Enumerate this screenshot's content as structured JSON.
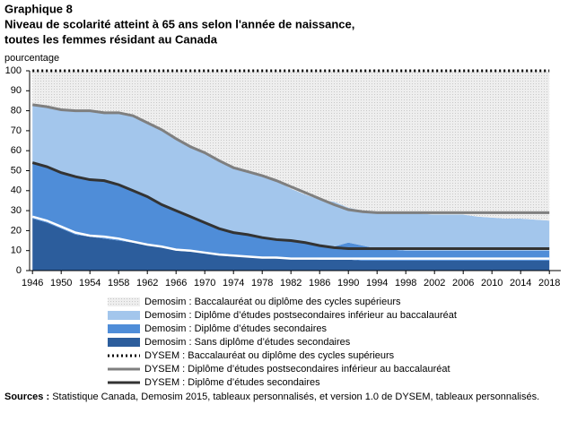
{
  "chart_data": {
    "type": "area",
    "label": "Graphique  8",
    "title": [
      "Niveau de scolarité atteint à 65 ans selon l'année de naissance,",
      "toutes les femmes résidant au Canada"
    ],
    "y_label": "pourcentage",
    "x": [
      1946,
      1948,
      1950,
      1952,
      1954,
      1956,
      1958,
      1960,
      1962,
      1964,
      1966,
      1968,
      1970,
      1972,
      1974,
      1976,
      1978,
      1980,
      1982,
      1984,
      1986,
      1988,
      1990,
      1992,
      1994,
      1996,
      1998,
      2000,
      2002,
      2004,
      2006,
      2008,
      2010,
      2012,
      2014,
      2016,
      2018
    ],
    "xlim": [
      1945.6,
      2019.6
    ],
    "xticks": [
      1946,
      1950,
      1954,
      1958,
      1962,
      1966,
      1970,
      1974,
      1978,
      1982,
      1986,
      1990,
      1994,
      1998,
      2002,
      2006,
      2010,
      2014,
      2018
    ],
    "ylim": [
      0,
      100
    ],
    "yticks": [
      0,
      10,
      20,
      30,
      40,
      50,
      60,
      70,
      80,
      90,
      100
    ],
    "series": [
      {
        "name": "Demosim : Baccalauréat ou diplôme des cycles supérieurs",
        "kind": "area",
        "color": "#e4e4e4",
        "pattern": "dots",
        "values": [
          17,
          18,
          19.5,
          20,
          20.5,
          21,
          21.5,
          23,
          26,
          29,
          34,
          38,
          41,
          45,
          48,
          50,
          52.5,
          55,
          59,
          62,
          64.5,
          65.5,
          68.5,
          70,
          71,
          71.5,
          71.5,
          71.5,
          72,
          72,
          72,
          73,
          73.5,
          74,
          74,
          74.5,
          75
        ]
      },
      {
        "name": "Demosim : Diplôme d’études postsecondaires inférieur au baccalauréat",
        "kind": "area",
        "color": "#a3c6ec",
        "values": [
          29,
          30,
          31.5,
          33,
          34,
          34,
          35.5,
          37,
          37,
          38,
          36,
          35,
          35,
          34,
          33,
          32,
          31,
          29.5,
          26.5,
          24.5,
          23.5,
          22.5,
          17.5,
          17.5,
          18,
          18,
          18.5,
          18.5,
          18,
          18,
          18,
          17,
          16.5,
          16,
          16,
          15.5,
          15
        ]
      },
      {
        "name": "Demosim : Diplôme d’études secondaires",
        "kind": "area",
        "color": "#4f8dd8",
        "values": [
          28,
          28,
          28,
          29,
          28.5,
          29,
          28,
          26,
          24,
          21,
          20,
          17.5,
          15,
          13,
          11.5,
          11,
          10,
          9.5,
          8.5,
          7.5,
          6.5,
          6.5,
          8.5,
          7.5,
          6,
          5.5,
          5,
          5,
          5,
          5,
          5,
          5,
          5,
          5,
          5,
          5,
          5
        ]
      },
      {
        "name": "Demosim : Sans diplôme d’études secondaires",
        "kind": "area",
        "color": "#2c5d9c",
        "values": [
          26,
          24,
          21,
          18,
          17,
          16,
          15,
          14,
          13,
          12,
          10,
          9.5,
          9,
          8,
          7.5,
          7,
          6.5,
          6,
          6,
          6,
          5.5,
          5.5,
          5.5,
          5,
          5,
          5,
          5,
          5,
          5,
          5,
          5,
          5,
          5,
          5,
          5,
          5,
          5
        ]
      },
      {
        "name": "DYSEM : Baccalauréat ou diplôme des cycles supérieurs",
        "kind": "line",
        "color": "#000000",
        "line_style": "dotted",
        "values": [
          17,
          18,
          19.5,
          20,
          20,
          21,
          21,
          22.5,
          26,
          29.5,
          34,
          38,
          41,
          45,
          48.5,
          50.5,
          52.5,
          55,
          58,
          61,
          64,
          67,
          69.5,
          70.5,
          71,
          71,
          71,
          71,
          71,
          71,
          71,
          71,
          71,
          71,
          71,
          71,
          71
        ]
      },
      {
        "name": "DYSEM : Diplôme d’études postsecondaires inférieur au baccalauréat",
        "kind": "line",
        "color": "#7f7f7f",
        "line_style": "solid",
        "values": [
          29,
          30,
          31.5,
          33,
          34.5,
          34,
          36,
          37.5,
          37,
          37.5,
          36,
          35,
          35,
          34,
          32.5,
          31.5,
          31,
          29.5,
          27,
          25,
          23.5,
          21.5,
          19.5,
          18.5,
          18,
          18,
          18,
          18,
          18,
          18,
          18,
          18,
          18,
          18,
          18,
          18,
          18
        ]
      },
      {
        "name": "DYSEM : Diplôme d’études secondaires",
        "kind": "line",
        "color": "#333333",
        "line_style": "solid",
        "values": [
          27,
          27,
          27,
          28,
          28,
          28,
          27,
          25.5,
          24,
          21,
          19.5,
          17,
          15,
          13,
          11.5,
          11,
          10,
          9,
          9,
          8,
          6.5,
          5.5,
          5,
          5,
          5,
          5,
          5,
          5,
          5,
          5,
          5,
          5,
          5,
          5,
          5,
          5,
          5
        ]
      },
      {
        "name": "DYSEM : Sans diplôme d’études secondaires",
        "kind": "line",
        "color": "#ffffff",
        "line_style": "solid",
        "values": [
          27,
          25,
          22,
          19,
          17.5,
          17,
          16,
          14.5,
          13,
          12,
          10.5,
          10,
          9,
          8,
          7.5,
          7,
          6.5,
          6.5,
          6,
          6,
          6,
          6,
          6,
          6,
          6,
          6,
          6,
          6,
          6,
          6,
          6,
          6,
          6,
          6,
          6,
          6,
          6
        ]
      }
    ],
    "source": {
      "label": "Sources :",
      "text": "Statistique Canada, Demosim 2015, tableaux personnalisés, et version 1.0 de DYSEM, tableaux personnalisés."
    }
  }
}
